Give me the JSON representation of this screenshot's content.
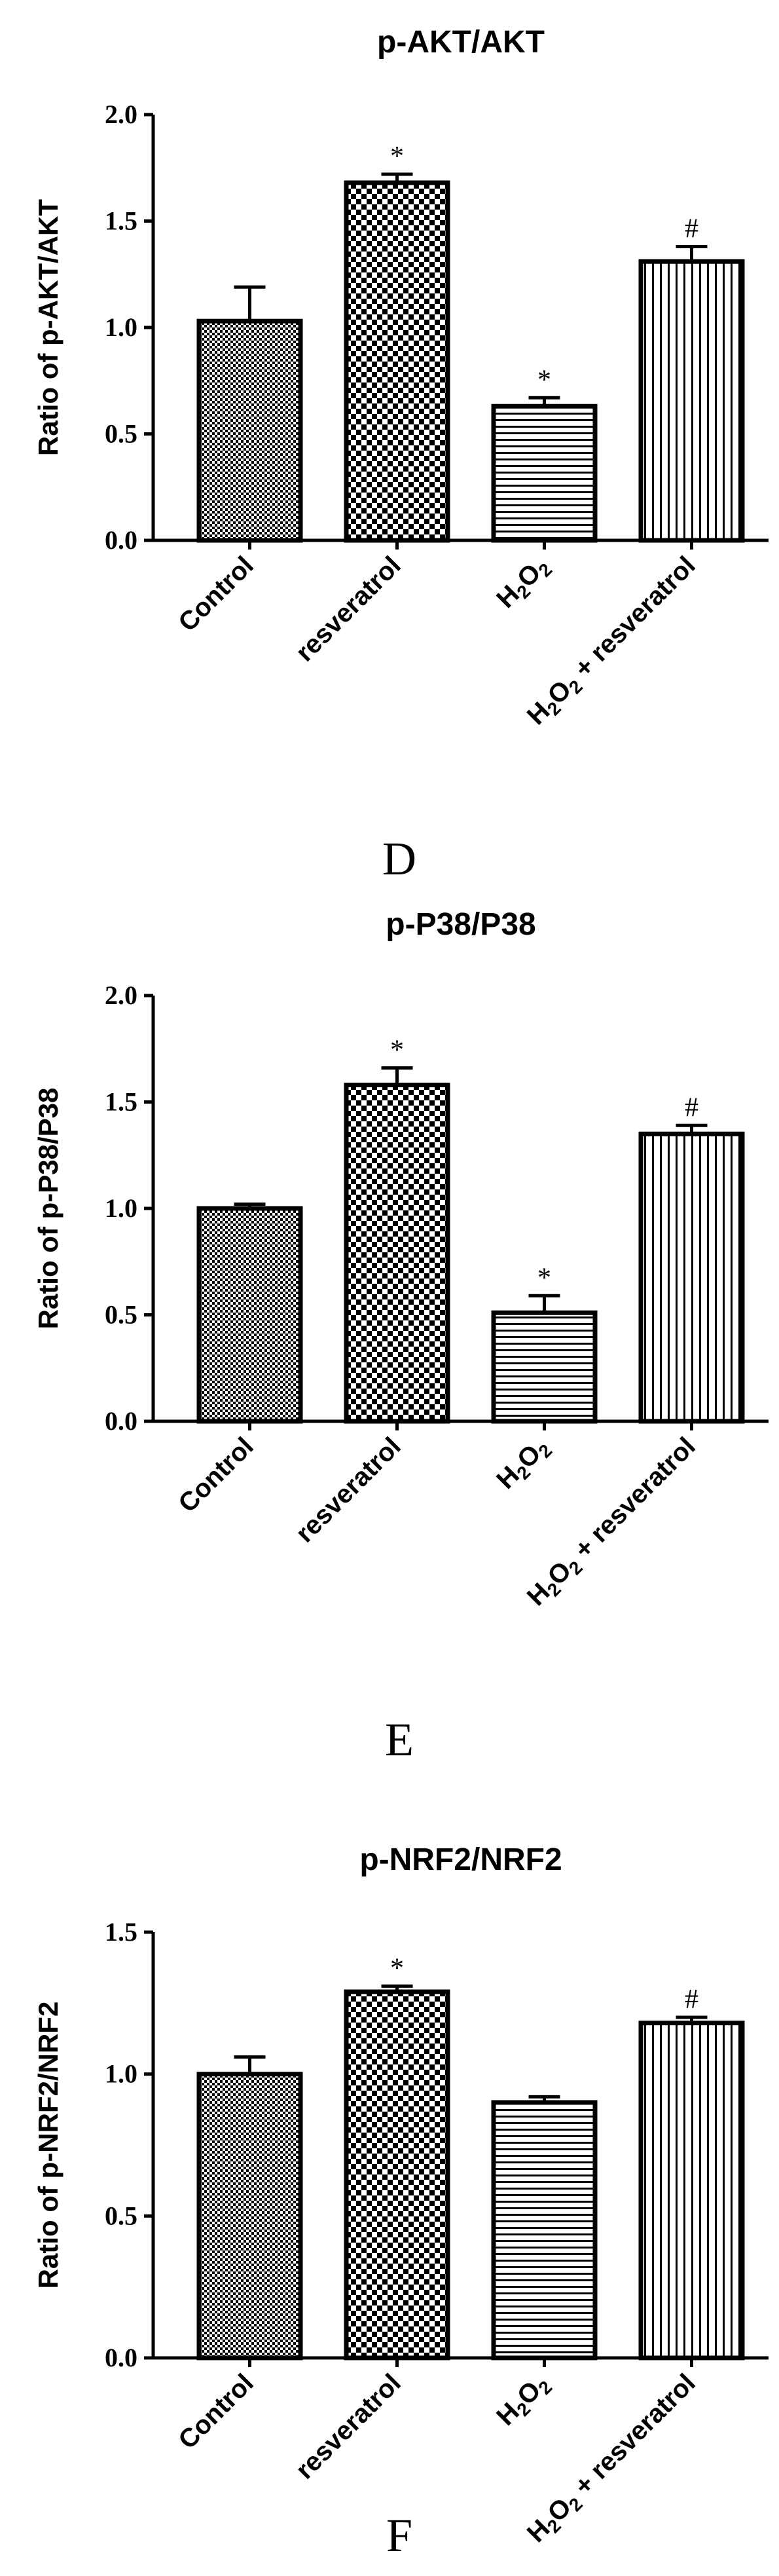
{
  "chart_data": [
    {
      "type": "bar",
      "title": "p-AKT/AKT",
      "ylabel": "Ratio of p-AKT/AKT",
      "ylim": [
        0,
        2.0
      ],
      "yticks": [
        "0.0",
        "0.5",
        "1.0",
        "1.5",
        "2.0"
      ],
      "categories": [
        "Control",
        "resveratrol",
        "H2O2",
        "H2O2 + resveratrol"
      ],
      "values": [
        1.03,
        1.68,
        0.63,
        1.31
      ],
      "errors": [
        0.16,
        0.04,
        0.04,
        0.07
      ],
      "significance": [
        "",
        "*",
        "*",
        "#"
      ],
      "panel": "D"
    },
    {
      "type": "bar",
      "title": "p-P38/P38",
      "ylabel": "Ratio of p-P38/P38",
      "ylim": [
        0,
        2.0
      ],
      "yticks": [
        "0.0",
        "0.5",
        "1.0",
        "1.5",
        "2.0"
      ],
      "categories": [
        "Control",
        "resveratrol",
        "H2O2",
        "H2O2 + resveratrol"
      ],
      "values": [
        1.0,
        1.58,
        0.51,
        1.35
      ],
      "errors": [
        0.02,
        0.08,
        0.08,
        0.04
      ],
      "significance": [
        "",
        "*",
        "*",
        "#"
      ],
      "panel": "E"
    },
    {
      "type": "bar",
      "title": "p-NRF2/NRF2",
      "ylabel": "Ratio of p-NRF2/NRF2",
      "ylim": [
        0,
        1.5
      ],
      "yticks": [
        "0.0",
        "0.5",
        "1.0",
        "1.5"
      ],
      "categories": [
        "Control",
        "resveratrol",
        "H2O2",
        "H2O2 + resveratrol"
      ],
      "values": [
        1.0,
        1.29,
        0.9,
        1.18
      ],
      "errors": [
        0.06,
        0.02,
        0.02,
        0.02
      ],
      "significance": [
        "",
        "*",
        "",
        "#"
      ],
      "panel": "F"
    }
  ]
}
